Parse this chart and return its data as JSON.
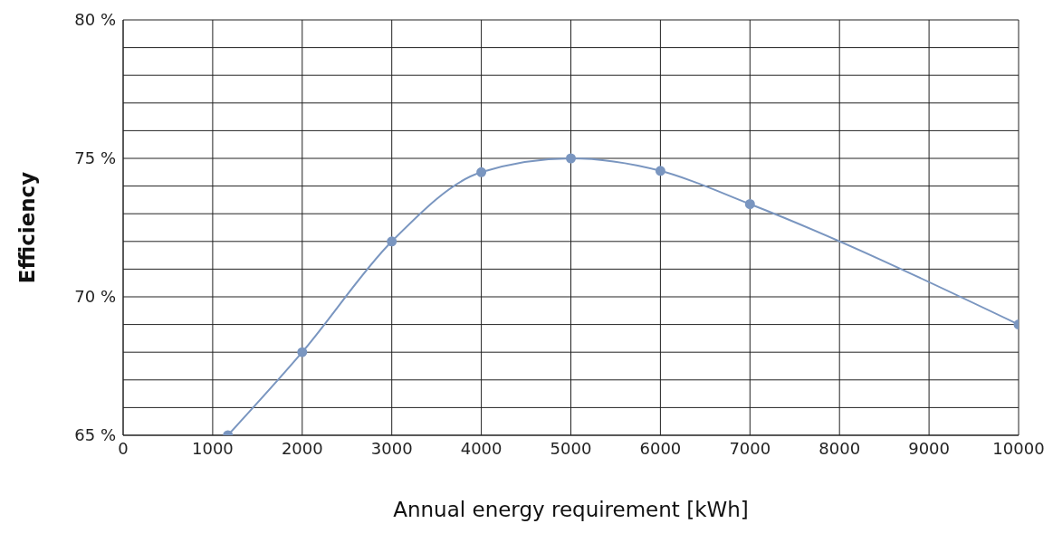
{
  "chart_data": {
    "type": "line",
    "xlabel": "Annual energy requirement [kWh]",
    "ylabel": "Efficiency",
    "x": [
      1170,
      2000,
      3000,
      4000,
      5000,
      6000,
      7000,
      10000
    ],
    "series": [
      {
        "color": "#7a96c0",
        "values": [
          65,
          68,
          72,
          74.5,
          75,
          74.55,
          73.35,
          69
        ]
      }
    ],
    "xlim": [
      0,
      10000
    ],
    "xticks": [
      0,
      1000,
      2000,
      3000,
      4000,
      5000,
      6000,
      7000,
      8000,
      9000,
      10000
    ],
    "ylim": [
      65,
      80
    ],
    "yticks": [
      {
        "value": 65,
        "label": "65 %"
      },
      {
        "value": 66,
        "label": null
      },
      {
        "value": 67,
        "label": null
      },
      {
        "value": 68,
        "label": null
      },
      {
        "value": 69,
        "label": null
      },
      {
        "value": 70,
        "label": "70 %"
      },
      {
        "value": 71,
        "label": null
      },
      {
        "value": 72,
        "label": null
      },
      {
        "value": 73,
        "label": null
      },
      {
        "value": 74,
        "label": null
      },
      {
        "value": 75,
        "label": "75 %"
      },
      {
        "value": 76,
        "label": null
      },
      {
        "value": 77,
        "label": null
      },
      {
        "value": 78,
        "label": null
      },
      {
        "value": 79,
        "label": null
      },
      {
        "value": 80,
        "label": "80 %"
      }
    ],
    "grid": true,
    "marker": "circle",
    "line_style": "solid",
    "legend": false
  }
}
